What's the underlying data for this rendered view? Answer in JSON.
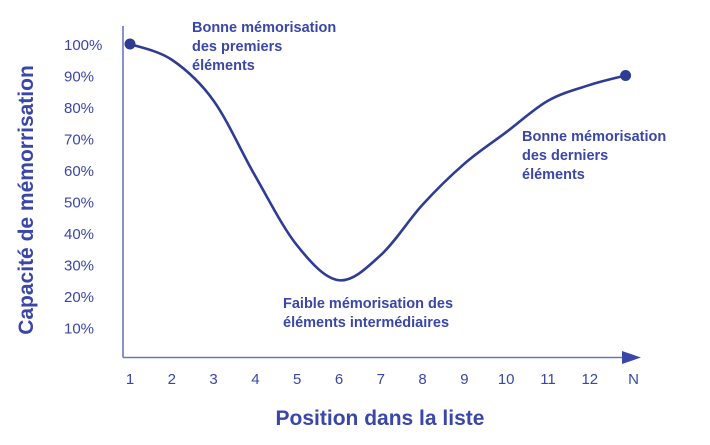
{
  "chart_data": {
    "type": "line",
    "title": "",
    "xlabel": "Position dans la liste",
    "ylabel": "Capacité de mémorrisation",
    "x_tick_labels": [
      "1",
      "2",
      "3",
      "4",
      "5",
      "6",
      "7",
      "8",
      "9",
      "10",
      "11",
      "12",
      "N"
    ],
    "y_tick_labels": [
      "100%",
      "90%",
      "80%",
      "70%",
      "60%",
      "50%",
      "40%",
      "30%",
      "20%",
      "10%"
    ],
    "y_ticks": [
      100,
      90,
      80,
      70,
      60,
      50,
      40,
      30,
      20,
      10
    ],
    "ylim": [
      0,
      100
    ],
    "grid": false,
    "series": [
      {
        "x": [
          "1",
          "2",
          "3",
          "4",
          "5",
          "6",
          "7",
          "8",
          "9",
          "10",
          "11",
          "12",
          "N"
        ],
        "values": [
          100,
          95,
          82,
          58,
          36,
          25,
          33,
          49,
          62,
          72,
          82,
          87,
          90
        ],
        "endpoint_markers": true
      }
    ],
    "annotations": [
      {
        "lines": [
          "Bonne mémorisation",
          "des premiers",
          "éléments"
        ]
      },
      {
        "lines": [
          "Faible mémorisation des",
          "éléments intermédiaires"
        ]
      },
      {
        "lines": [
          "Bonne mémorisation",
          "des derniers",
          "éléments"
        ]
      }
    ],
    "colors": {
      "line": "#2f3c94",
      "axis": "#6b74c4",
      "text": "#3a46a8"
    }
  }
}
